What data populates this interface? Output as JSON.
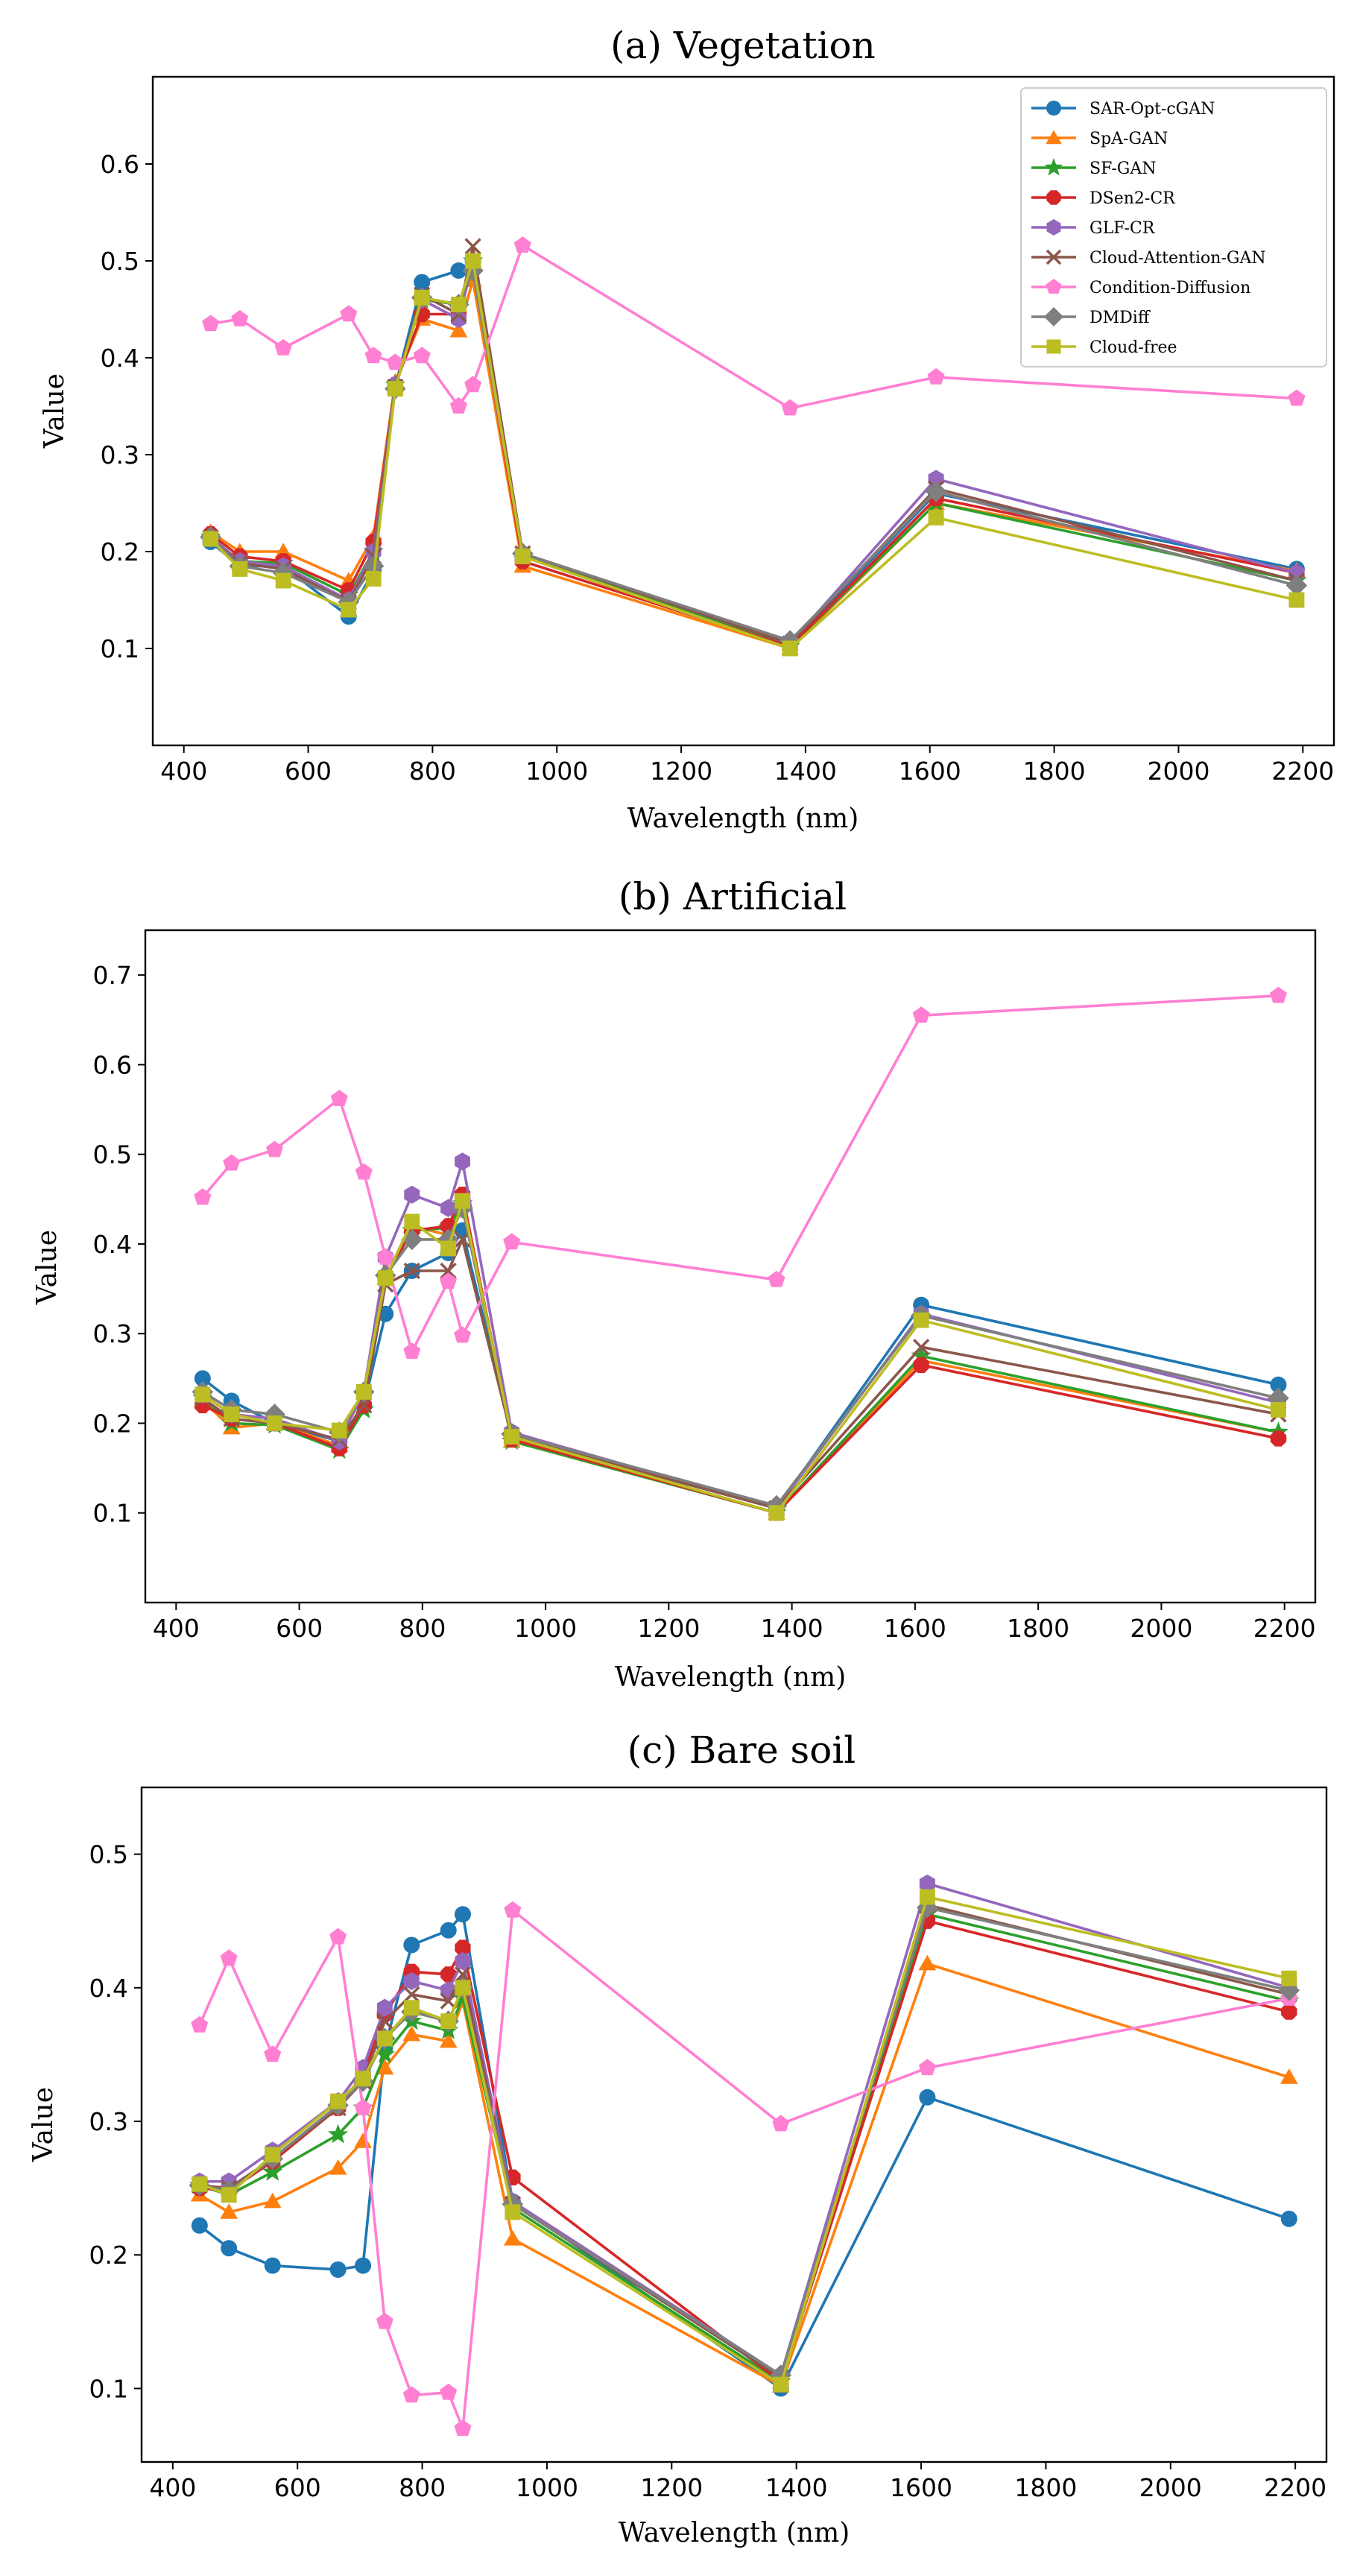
{
  "figure": {
    "series_colors": {
      "SAR-Opt-cGAN": "#1f77b4",
      "SpA-GAN": "#ff7f0e",
      "SF-GAN": "#2ca02c",
      "DSen2-CR": "#d62728",
      "GLF-CR": "#9467bd",
      "Cloud-Attention-GAN": "#8c564b",
      "Condition-Diffusion": "#ff7fd2",
      "DMDiff": "#7f7f7f",
      "Cloud-free": "#bcbd22"
    },
    "series_markers": {
      "SAR-Opt-cGAN": "circle",
      "SpA-GAN": "triangle",
      "SF-GAN": "star",
      "DSen2-CR": "octagon",
      "GLF-CR": "hexagon",
      "Cloud-Attention-GAN": "x",
      "Condition-Diffusion": "pentagon",
      "DMDiff": "diamond",
      "Cloud-free": "square"
    }
  },
  "chart_data": [
    {
      "type": "line",
      "title": "(a) Vegetation",
      "xlabel": "Wavelength (nm)",
      "ylabel": "Value",
      "xlim": [
        350,
        2250
      ],
      "ylim": [
        0.0,
        0.69
      ],
      "xticks": [
        400,
        600,
        800,
        1000,
        1200,
        1400,
        1600,
        1800,
        2000,
        2200
      ],
      "yticks": [
        0.1,
        0.2,
        0.3,
        0.4,
        0.5,
        0.6
      ],
      "legend": "top-right",
      "x": [
        443,
        490,
        560,
        665,
        705,
        740,
        783,
        842,
        865,
        945,
        1375,
        1610,
        2190
      ],
      "series": [
        {
          "name": "SAR-Opt-cGAN",
          "values": [
            0.21,
            0.185,
            0.185,
            0.133,
            0.18,
            0.37,
            0.478,
            0.49,
            0.5,
            0.195,
            0.105,
            0.26,
            0.182
          ]
        },
        {
          "name": "SpA-GAN",
          "values": [
            0.22,
            0.2,
            0.2,
            0.17,
            0.215,
            0.375,
            0.44,
            0.428,
            0.48,
            0.185,
            0.1,
            0.25,
            0.18
          ]
        },
        {
          "name": "SF-GAN",
          "values": [
            0.215,
            0.19,
            0.188,
            0.155,
            0.2,
            0.372,
            0.46,
            0.455,
            0.5,
            0.195,
            0.102,
            0.25,
            0.17
          ]
        },
        {
          "name": "DSen2-CR",
          "values": [
            0.218,
            0.195,
            0.19,
            0.16,
            0.21,
            0.372,
            0.445,
            0.445,
            0.495,
            0.19,
            0.102,
            0.255,
            0.178
          ]
        },
        {
          "name": "GLF-CR",
          "values": [
            0.215,
            0.19,
            0.185,
            0.15,
            0.2,
            0.372,
            0.46,
            0.44,
            0.498,
            0.198,
            0.105,
            0.275,
            0.178
          ]
        },
        {
          "name": "Cloud-Attention-GAN",
          "values": [
            0.214,
            0.188,
            0.182,
            0.148,
            0.195,
            0.37,
            0.465,
            0.445,
            0.515,
            0.198,
            0.105,
            0.265,
            0.17
          ]
        },
        {
          "name": "Condition-Diffusion",
          "values": [
            0.435,
            0.44,
            0.41,
            0.445,
            0.402,
            0.395,
            0.402,
            0.35,
            0.372,
            0.516,
            0.348,
            0.38,
            0.358
          ]
        },
        {
          "name": "DMDiff",
          "values": [
            0.215,
            0.185,
            0.178,
            0.148,
            0.185,
            0.368,
            0.462,
            0.455,
            0.49,
            0.198,
            0.108,
            0.262,
            0.165
          ]
        },
        {
          "name": "Cloud-free",
          "values": [
            0.213,
            0.182,
            0.17,
            0.14,
            0.172,
            0.368,
            0.462,
            0.455,
            0.5,
            0.195,
            0.1,
            0.235,
            0.15
          ]
        }
      ]
    },
    {
      "type": "line",
      "title": "(b) Artificial",
      "xlabel": "Wavelength (nm)",
      "ylabel": "Value",
      "xlim": [
        350,
        2250
      ],
      "ylim": [
        0.0,
        0.75
      ],
      "xticks": [
        400,
        600,
        800,
        1000,
        1200,
        1400,
        1600,
        1800,
        2000,
        2200
      ],
      "yticks": [
        0.1,
        0.2,
        0.3,
        0.4,
        0.5,
        0.6,
        0.7
      ],
      "legend": "none",
      "x": [
        443,
        490,
        560,
        665,
        705,
        740,
        783,
        842,
        865,
        945,
        1375,
        1610,
        2190
      ],
      "series": [
        {
          "name": "SAR-Opt-cGAN",
          "values": [
            0.25,
            0.225,
            0.2,
            0.18,
            0.22,
            0.322,
            0.37,
            0.39,
            0.415,
            0.185,
            0.105,
            0.332,
            0.243
          ]
        },
        {
          "name": "SpA-GAN",
          "values": [
            0.225,
            0.195,
            0.2,
            0.175,
            0.225,
            0.362,
            0.42,
            0.41,
            0.45,
            0.18,
            0.1,
            0.27,
            0.19
          ]
        },
        {
          "name": "SF-GAN",
          "values": [
            0.228,
            0.2,
            0.198,
            0.17,
            0.215,
            0.362,
            0.415,
            0.418,
            0.445,
            0.18,
            0.1,
            0.275,
            0.19
          ]
        },
        {
          "name": "DSen2-CR",
          "values": [
            0.22,
            0.205,
            0.2,
            0.172,
            0.22,
            0.362,
            0.415,
            0.42,
            0.455,
            0.182,
            0.1,
            0.265,
            0.183
          ]
        },
        {
          "name": "GLF-CR",
          "values": [
            0.232,
            0.21,
            0.205,
            0.18,
            0.235,
            0.385,
            0.455,
            0.44,
            0.492,
            0.19,
            0.105,
            0.322,
            0.223
          ]
        },
        {
          "name": "Cloud-Attention-GAN",
          "values": [
            0.228,
            0.205,
            0.2,
            0.182,
            0.22,
            0.355,
            0.37,
            0.37,
            0.405,
            0.185,
            0.105,
            0.285,
            0.21
          ]
        },
        {
          "name": "Condition-Diffusion",
          "values": [
            0.452,
            0.49,
            0.505,
            0.562,
            0.48,
            0.385,
            0.28,
            0.358,
            0.298,
            0.402,
            0.36,
            0.655,
            0.677
          ]
        },
        {
          "name": "DMDiff",
          "values": [
            0.235,
            0.215,
            0.21,
            0.19,
            0.235,
            0.365,
            0.405,
            0.405,
            0.44,
            0.188,
            0.108,
            0.32,
            0.228
          ]
        },
        {
          "name": "Cloud-free",
          "values": [
            0.232,
            0.21,
            0.2,
            0.192,
            0.235,
            0.362,
            0.425,
            0.395,
            0.448,
            0.185,
            0.1,
            0.315,
            0.215
          ]
        }
      ]
    },
    {
      "type": "line",
      "title": "(c) Bare soil",
      "xlabel": "Wavelength (nm)",
      "ylabel": "Value",
      "xlim": [
        350,
        2250
      ],
      "ylim": [
        0.045,
        0.55
      ],
      "xticks": [
        400,
        600,
        800,
        1000,
        1200,
        1400,
        1600,
        1800,
        2000,
        2200
      ],
      "yticks": [
        0.1,
        0.2,
        0.3,
        0.4,
        0.5
      ],
      "legend": "none",
      "x": [
        443,
        490,
        560,
        665,
        705,
        740,
        783,
        842,
        865,
        945,
        1375,
        1610,
        2190
      ],
      "series": [
        {
          "name": "SAR-Opt-cGAN",
          "values": [
            0.222,
            0.205,
            0.192,
            0.189,
            0.192,
            0.355,
            0.432,
            0.443,
            0.455,
            0.24,
            0.1,
            0.318,
            0.227
          ]
        },
        {
          "name": "SpA-GAN",
          "values": [
            0.245,
            0.232,
            0.24,
            0.265,
            0.285,
            0.34,
            0.365,
            0.36,
            0.39,
            0.212,
            0.102,
            0.418,
            0.333
          ]
        },
        {
          "name": "SF-GAN",
          "values": [
            0.252,
            0.245,
            0.262,
            0.29,
            0.31,
            0.35,
            0.375,
            0.368,
            0.392,
            0.235,
            0.105,
            0.455,
            0.39
          ]
        },
        {
          "name": "DSen2-CR",
          "values": [
            0.25,
            0.248,
            0.27,
            0.31,
            0.335,
            0.38,
            0.412,
            0.41,
            0.43,
            0.258,
            0.105,
            0.45,
            0.382
          ]
        },
        {
          "name": "GLF-CR",
          "values": [
            0.255,
            0.255,
            0.278,
            0.315,
            0.34,
            0.385,
            0.405,
            0.398,
            0.42,
            0.24,
            0.11,
            0.478,
            0.4
          ]
        },
        {
          "name": "Cloud-Attention-GAN",
          "values": [
            0.252,
            0.25,
            0.272,
            0.31,
            0.33,
            0.375,
            0.395,
            0.39,
            0.41,
            0.238,
            0.108,
            0.462,
            0.395
          ]
        },
        {
          "name": "Condition-Diffusion",
          "values": [
            0.372,
            0.422,
            0.35,
            0.438,
            0.31,
            0.15,
            0.095,
            0.097,
            0.07,
            0.458,
            0.298,
            0.34,
            0.392
          ]
        },
        {
          "name": "DMDiff",
          "values": [
            0.252,
            0.248,
            0.272,
            0.312,
            0.33,
            0.362,
            0.382,
            0.375,
            0.4,
            0.238,
            0.11,
            0.46,
            0.398
          ]
        },
        {
          "name": "Cloud-free",
          "values": [
            0.253,
            0.245,
            0.275,
            0.315,
            0.332,
            0.362,
            0.385,
            0.375,
            0.4,
            0.232,
            0.103,
            0.468,
            0.407
          ]
        }
      ]
    }
  ]
}
